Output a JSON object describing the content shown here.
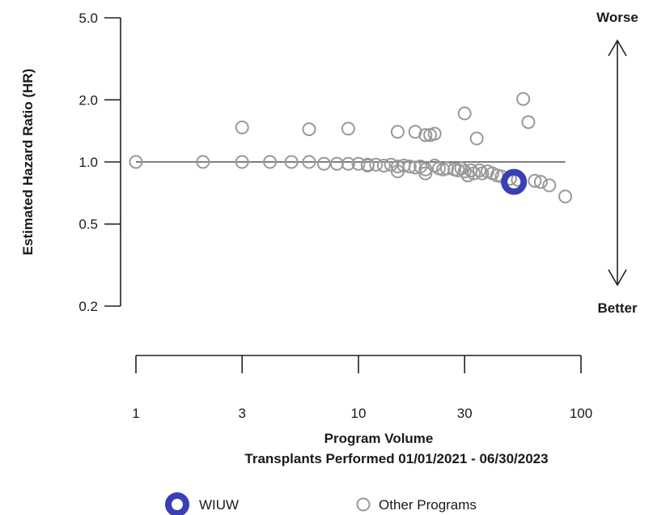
{
  "chart_data": {
    "type": "scatter",
    "title": "",
    "xlabel": "Program Volume",
    "xlabel_sub": "Transplants Performed 01/01/2021 - 06/30/2023",
    "ylabel": "Estimated Hazard Ratio (HR)",
    "xscale": "log",
    "yscale": "log",
    "xlim": [
      1,
      100
    ],
    "ylim": [
      0.2,
      5.0
    ],
    "x_ticks": [
      1,
      3,
      10,
      30,
      100
    ],
    "x_tick_labels": [
      "1",
      "3",
      "10",
      "30",
      "100"
    ],
    "y_ticks": [
      5.0,
      2.0,
      1.0,
      0.5,
      0.2
    ],
    "y_tick_labels": [
      "5.0",
      "2.0",
      "1.0",
      "0.5",
      "0.2"
    ],
    "reference_line": 1.0,
    "direction_labels": {
      "top": "Worse",
      "bottom": "Better"
    },
    "series": [
      {
        "name": "Other Programs",
        "color": "#999999",
        "points": [
          [
            1,
            1.0
          ],
          [
            2,
            1.0
          ],
          [
            3,
            1.0
          ],
          [
            3,
            1.47
          ],
          [
            4,
            1.0
          ],
          [
            5,
            1.0
          ],
          [
            6,
            1.0
          ],
          [
            6,
            1.44
          ],
          [
            7,
            0.98
          ],
          [
            8,
            0.98
          ],
          [
            9,
            0.98
          ],
          [
            9,
            1.45
          ],
          [
            10,
            0.98
          ],
          [
            11,
            0.97
          ],
          [
            11,
            0.96
          ],
          [
            12,
            0.97
          ],
          [
            13,
            0.96
          ],
          [
            14,
            0.97
          ],
          [
            15,
            0.95
          ],
          [
            15,
            0.9
          ],
          [
            15,
            1.4
          ],
          [
            16,
            0.96
          ],
          [
            17,
            0.95
          ],
          [
            18,
            0.94
          ],
          [
            18,
            1.4
          ],
          [
            19,
            0.95
          ],
          [
            20,
            0.92
          ],
          [
            20,
            0.88
          ],
          [
            20,
            1.35
          ],
          [
            21,
            1.35
          ],
          [
            22,
            0.96
          ],
          [
            22,
            1.37
          ],
          [
            23,
            0.93
          ],
          [
            24,
            0.92
          ],
          [
            25,
            0.93
          ],
          [
            27,
            0.92
          ],
          [
            28,
            0.91
          ],
          [
            29,
            0.93
          ],
          [
            30,
            0.9
          ],
          [
            30,
            1.72
          ],
          [
            31,
            0.86
          ],
          [
            32,
            0.91
          ],
          [
            33,
            0.88
          ],
          [
            34,
            1.3
          ],
          [
            35,
            0.91
          ],
          [
            36,
            0.88
          ],
          [
            38,
            0.9
          ],
          [
            40,
            0.88
          ],
          [
            42,
            0.86
          ],
          [
            44,
            0.85
          ],
          [
            48,
            0.83
          ],
          [
            52,
            0.82
          ],
          [
            55,
            2.02
          ],
          [
            58,
            1.56
          ],
          [
            62,
            0.81
          ],
          [
            66,
            0.8
          ],
          [
            72,
            0.77
          ],
          [
            85,
            0.68
          ]
        ]
      },
      {
        "name": "WIUW",
        "color": "#3a3fb5",
        "points": [
          [
            50,
            0.8
          ]
        ]
      }
    ],
    "legend": [
      {
        "name": "WIUW",
        "label": "WIUW",
        "color": "#3a3fb5",
        "style": "highlight"
      },
      {
        "name": "Other Programs",
        "label": "Other Programs",
        "color": "#999999",
        "style": "ring"
      }
    ],
    "grid": false,
    "legend_position": "bottom"
  }
}
